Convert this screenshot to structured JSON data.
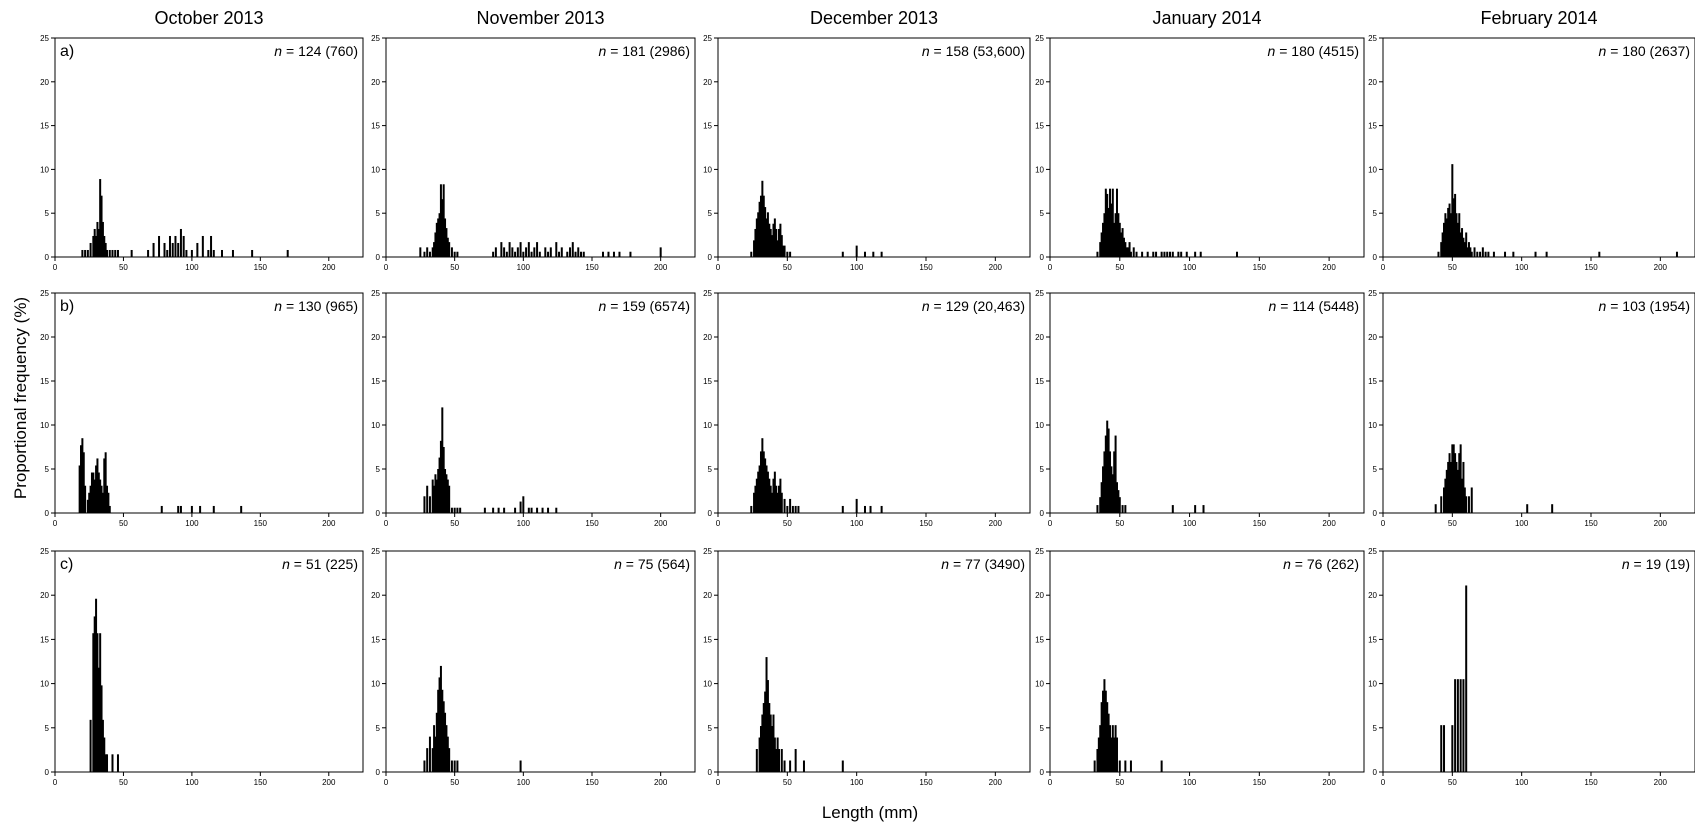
{
  "figure": {
    "ylabel": "Proportional frequency (%)",
    "xlabel": "Length (mm)"
  },
  "chart_data": {
    "type": "bar",
    "columns": [
      "October 2013",
      "November 2013",
      "December 2013",
      "January 2014",
      "February 2014"
    ],
    "rows": [
      "a)",
      "b)",
      "c)"
    ],
    "xticks": [
      0,
      50,
      100,
      150,
      200
    ],
    "yticks": [
      0,
      5,
      10,
      15,
      20,
      25
    ],
    "xlim": [
      0,
      225
    ],
    "ylim": [
      0,
      25
    ],
    "grid": false,
    "panels": [
      {
        "row": 0,
        "col": 0,
        "n": "124",
        "total": "(760)",
        "x": [
          20,
          22,
          24,
          26,
          28,
          29,
          30,
          31,
          32,
          33,
          34,
          35,
          36,
          37,
          38,
          40,
          42,
          44,
          46,
          56,
          68,
          72,
          76,
          80,
          82,
          84,
          86,
          88,
          90,
          92,
          94,
          96,
          100,
          104,
          108,
          112,
          114,
          116,
          122,
          130,
          144,
          170
        ],
        "y": [
          0.8,
          0.8,
          0.8,
          1.6,
          2.4,
          3.2,
          2.4,
          4.0,
          3.2,
          8.9,
          7.0,
          4.0,
          2.4,
          1.6,
          0.8,
          0.8,
          0.8,
          0.8,
          0.8,
          0.8,
          0.8,
          1.6,
          2.4,
          1.6,
          0.8,
          2.4,
          1.6,
          2.4,
          1.6,
          3.2,
          2.4,
          0.8,
          0.8,
          1.6,
          2.4,
          0.8,
          2.4,
          0.8,
          0.8,
          0.8,
          0.8,
          0.8
        ]
      },
      {
        "row": 0,
        "col": 1,
        "n": "181",
        "total": "(2986)",
        "x": [
          25,
          28,
          30,
          32,
          34,
          35,
          36,
          37,
          38,
          39,
          40,
          41,
          42,
          43,
          44,
          45,
          46,
          48,
          50,
          52,
          78,
          80,
          84,
          86,
          88,
          90,
          92,
          94,
          96,
          98,
          100,
          102,
          104,
          106,
          108,
          110,
          112,
          116,
          118,
          120,
          124,
          126,
          128,
          132,
          134,
          136,
          138,
          140,
          142,
          144,
          158,
          162,
          166,
          170,
          178,
          200
        ],
        "y": [
          1.1,
          0.6,
          1.1,
          0.6,
          1.1,
          1.7,
          2.8,
          3.9,
          4.4,
          5.0,
          8.3,
          6.6,
          8.3,
          4.4,
          3.3,
          2.2,
          1.7,
          1.1,
          0.6,
          0.6,
          0.6,
          1.1,
          1.7,
          1.1,
          0.6,
          1.7,
          1.1,
          0.6,
          1.1,
          1.7,
          0.6,
          1.1,
          1.7,
          0.6,
          1.1,
          1.7,
          0.6,
          1.1,
          0.6,
          1.1,
          1.7,
          0.6,
          1.1,
          0.6,
          1.1,
          1.7,
          0.6,
          1.1,
          0.6,
          0.6,
          0.6,
          0.6,
          0.6,
          0.6,
          0.6,
          1.1
        ]
      },
      {
        "row": 0,
        "col": 2,
        "n": "158",
        "total": "(53,600)",
        "x": [
          24,
          26,
          27,
          28,
          29,
          30,
          31,
          32,
          33,
          34,
          35,
          36,
          37,
          38,
          39,
          40,
          41,
          42,
          43,
          44,
          45,
          46,
          47,
          48,
          50,
          52,
          90,
          100,
          106,
          112,
          118
        ],
        "y": [
          0.6,
          1.9,
          3.2,
          4.4,
          5.1,
          6.3,
          7.0,
          8.7,
          7.0,
          5.7,
          4.4,
          5.1,
          3.8,
          3.2,
          2.5,
          3.8,
          4.4,
          3.2,
          1.9,
          3.2,
          3.8,
          2.5,
          1.3,
          1.3,
          0.6,
          0.6,
          0.6,
          1.3,
          0.6,
          0.6,
          0.6
        ]
      },
      {
        "row": 0,
        "col": 3,
        "n": "180",
        "total": "(4515)",
        "x": [
          34,
          36,
          37,
          38,
          39,
          40,
          41,
          42,
          43,
          44,
          45,
          46,
          47,
          48,
          49,
          50,
          51,
          52,
          53,
          54,
          55,
          56,
          57,
          58,
          60,
          62,
          66,
          70,
          74,
          76,
          80,
          82,
          84,
          86,
          88,
          92,
          94,
          98,
          104,
          108,
          134
        ],
        "y": [
          0.6,
          1.7,
          2.8,
          3.9,
          5.0,
          7.8,
          7.2,
          5.6,
          7.8,
          6.1,
          7.8,
          3.9,
          5.0,
          7.8,
          5.0,
          3.9,
          2.8,
          3.3,
          2.2,
          1.7,
          1.1,
          1.1,
          1.7,
          0.6,
          1.1,
          0.6,
          0.6,
          0.6,
          0.6,
          0.6,
          0.6,
          0.6,
          0.6,
          0.6,
          0.6,
          0.6,
          0.6,
          0.6,
          0.6,
          0.6,
          0.6
        ]
      },
      {
        "row": 0,
        "col": 4,
        "n": "180",
        "total": "(2637)",
        "x": [
          40,
          42,
          43,
          44,
          45,
          46,
          47,
          48,
          49,
          50,
          51,
          52,
          53,
          54,
          55,
          56,
          57,
          58,
          59,
          60,
          61,
          62,
          63,
          64,
          66,
          68,
          70,
          72,
          74,
          76,
          80,
          88,
          94,
          110,
          118,
          156,
          212
        ],
        "y": [
          0.6,
          1.7,
          2.8,
          3.9,
          5.0,
          4.4,
          5.6,
          6.1,
          5.0,
          10.6,
          6.7,
          7.2,
          5.0,
          3.9,
          5.0,
          2.8,
          3.3,
          2.2,
          1.7,
          2.8,
          1.1,
          1.7,
          1.1,
          0.6,
          1.1,
          0.6,
          0.6,
          1.1,
          0.6,
          0.6,
          0.6,
          0.6,
          0.6,
          0.6,
          0.6,
          0.6,
          0.6
        ]
      },
      {
        "row": 1,
        "col": 0,
        "n": "130",
        "total": "(965)",
        "x": [
          18,
          19,
          20,
          21,
          22,
          24,
          25,
          26,
          27,
          28,
          29,
          30,
          31,
          32,
          33,
          34,
          35,
          36,
          37,
          38,
          39,
          40,
          78,
          90,
          92,
          100,
          106,
          116,
          136
        ],
        "y": [
          5.4,
          7.7,
          8.5,
          6.9,
          3.1,
          1.5,
          2.3,
          3.1,
          4.6,
          4.6,
          3.8,
          5.4,
          6.2,
          4.6,
          3.8,
          3.1,
          2.3,
          6.2,
          6.9,
          3.1,
          2.3,
          0.8,
          0.8,
          0.8,
          0.8,
          0.8,
          0.8,
          0.8,
          0.8
        ]
      },
      {
        "row": 1,
        "col": 1,
        "n": "159",
        "total": "(6574)",
        "x": [
          28,
          30,
          32,
          34,
          35,
          36,
          37,
          38,
          39,
          40,
          41,
          42,
          43,
          44,
          45,
          46,
          48,
          50,
          52,
          54,
          72,
          78,
          82,
          86,
          94,
          98,
          100,
          104,
          106,
          110,
          114,
          118,
          124
        ],
        "y": [
          1.9,
          3.1,
          1.9,
          3.8,
          3.1,
          4.4,
          3.8,
          5.0,
          6.3,
          8.2,
          12.0,
          7.5,
          5.0,
          4.4,
          3.8,
          3.1,
          0.6,
          0.6,
          0.6,
          0.6,
          0.6,
          0.6,
          0.6,
          0.6,
          0.6,
          1.3,
          1.9,
          0.6,
          0.6,
          0.6,
          0.6,
          0.6,
          0.6
        ]
      },
      {
        "row": 1,
        "col": 2,
        "n": "129",
        "total": "(20,463)",
        "x": [
          24,
          26,
          27,
          28,
          29,
          30,
          31,
          32,
          33,
          34,
          35,
          36,
          37,
          38,
          39,
          40,
          41,
          42,
          43,
          44,
          45,
          46,
          48,
          50,
          52,
          54,
          56,
          58,
          90,
          100,
          106,
          110,
          118
        ],
        "y": [
          0.8,
          2.3,
          3.1,
          3.9,
          4.7,
          5.4,
          7.0,
          8.5,
          7.0,
          6.2,
          5.4,
          4.7,
          3.9,
          3.1,
          2.3,
          3.9,
          4.7,
          3.1,
          2.3,
          3.1,
          3.9,
          2.3,
          1.6,
          0.8,
          1.6,
          0.8,
          0.8,
          0.8,
          0.8,
          1.6,
          0.8,
          0.8,
          0.8
        ]
      },
      {
        "row": 1,
        "col": 3,
        "n": "114",
        "total": "(5448)",
        "x": [
          34,
          36,
          37,
          38,
          39,
          40,
          41,
          42,
          43,
          44,
          45,
          46,
          47,
          48,
          49,
          50,
          52,
          54,
          88,
          104,
          110
        ],
        "y": [
          0.9,
          1.8,
          3.5,
          5.3,
          7.0,
          8.8,
          10.5,
          9.6,
          7.0,
          5.3,
          4.4,
          7.0,
          8.8,
          3.5,
          2.6,
          1.8,
          0.9,
          0.9,
          0.9,
          0.9,
          0.9
        ]
      },
      {
        "row": 1,
        "col": 4,
        "n": "103",
        "total": "(1954)",
        "x": [
          38,
          42,
          44,
          45,
          46,
          47,
          48,
          49,
          50,
          51,
          52,
          53,
          54,
          55,
          56,
          57,
          58,
          59,
          60,
          62,
          64,
          104,
          122
        ],
        "y": [
          1.0,
          1.9,
          2.9,
          3.9,
          4.9,
          5.8,
          6.8,
          5.8,
          7.8,
          7.8,
          6.8,
          5.8,
          4.9,
          6.8,
          7.8,
          3.9,
          5.8,
          2.9,
          1.9,
          1.9,
          2.9,
          1.0,
          1.0
        ]
      },
      {
        "row": 2,
        "col": 0,
        "n": "51",
        "total": "(225)",
        "x": [
          26,
          28,
          29,
          30,
          31,
          32,
          33,
          34,
          35,
          36,
          37,
          38,
          42,
          46
        ],
        "y": [
          5.9,
          15.7,
          17.6,
          19.6,
          15.7,
          11.8,
          15.7,
          9.8,
          5.9,
          3.9,
          2.0,
          2.0,
          2.0,
          2.0
        ]
      },
      {
        "row": 2,
        "col": 1,
        "n": "75",
        "total": "(564)",
        "x": [
          28,
          30,
          32,
          34,
          35,
          36,
          37,
          38,
          39,
          40,
          41,
          42,
          43,
          44,
          45,
          46,
          48,
          50,
          52,
          98
        ],
        "y": [
          1.3,
          2.7,
          4.0,
          2.7,
          5.3,
          4.0,
          6.7,
          9.3,
          10.7,
          12.0,
          9.3,
          8.0,
          6.7,
          5.3,
          4.0,
          2.7,
          1.3,
          1.3,
          1.3,
          1.3
        ]
      },
      {
        "row": 2,
        "col": 2,
        "n": "77",
        "total": "(3490)",
        "x": [
          28,
          30,
          31,
          32,
          33,
          34,
          35,
          36,
          37,
          38,
          39,
          40,
          41,
          42,
          43,
          44,
          46,
          48,
          52,
          56,
          62,
          90
        ],
        "y": [
          2.6,
          3.9,
          5.2,
          6.5,
          7.8,
          9.1,
          13.0,
          10.4,
          7.8,
          6.5,
          5.2,
          6.5,
          3.9,
          2.6,
          3.9,
          2.6,
          2.6,
          1.3,
          1.3,
          2.6,
          1.3,
          1.3
        ]
      },
      {
        "row": 2,
        "col": 3,
        "n": "76",
        "total": "(262)",
        "x": [
          32,
          34,
          35,
          36,
          37,
          38,
          39,
          40,
          41,
          42,
          43,
          44,
          45,
          46,
          47,
          48,
          50,
          54,
          58,
          80
        ],
        "y": [
          1.3,
          2.6,
          3.9,
          5.3,
          7.9,
          9.2,
          10.5,
          9.2,
          7.9,
          6.6,
          5.3,
          3.9,
          5.3,
          3.9,
          5.3,
          3.9,
          1.3,
          1.3,
          1.3,
          1.3
        ]
      },
      {
        "row": 2,
        "col": 4,
        "n": "19",
        "total": "(19)",
        "x": [
          42,
          44,
          50,
          52,
          54,
          56,
          58,
          60
        ],
        "y": [
          5.3,
          5.3,
          5.3,
          10.5,
          10.5,
          10.5,
          10.5,
          21.1
        ]
      }
    ]
  }
}
